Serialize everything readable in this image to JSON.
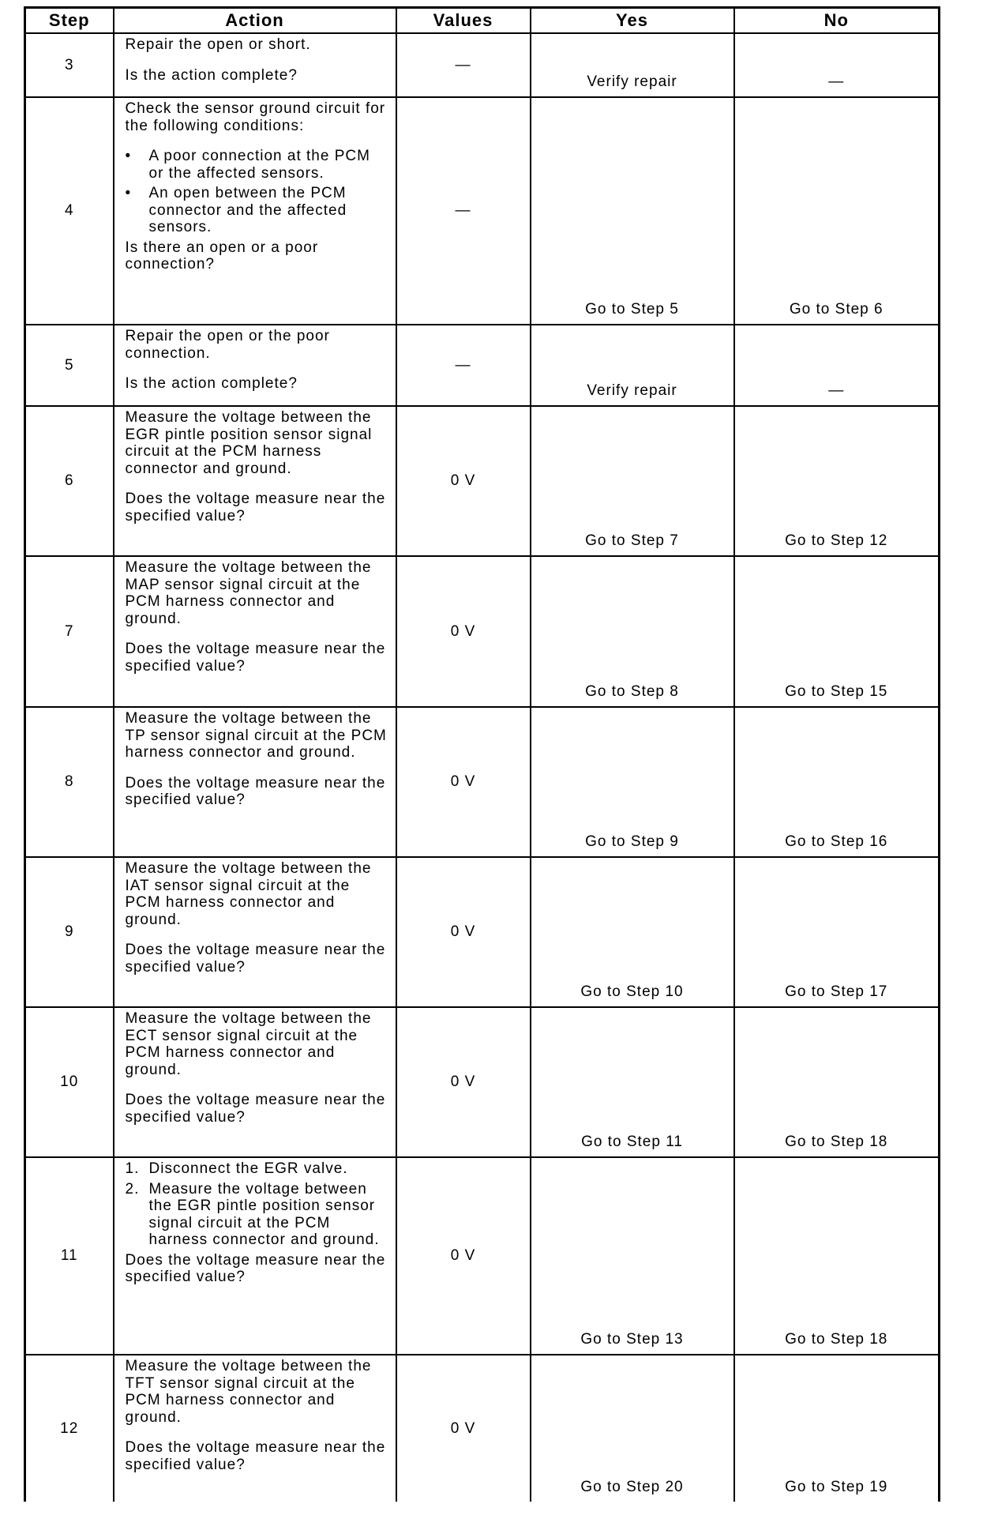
{
  "table": {
    "columns": [
      "Step",
      "Action",
      "Values",
      "Yes",
      "No"
    ],
    "rows": [
      {
        "step": "3",
        "action": [
          {
            "text": "Repair the open or short."
          },
          {
            "text": "Is the action complete?"
          }
        ],
        "values": "—",
        "yes": "Verify repair",
        "no": "—"
      },
      {
        "step": "4",
        "action": [
          {
            "text": "Check the sensor ground circuit for the following conditions:"
          },
          {
            "marker": "•",
            "text": "A poor connection at the PCM or the affected sensors."
          },
          {
            "marker": "•",
            "text": "An open between the PCM connector and the affected sensors."
          },
          {
            "text": "Is there an open or a poor connection?"
          }
        ],
        "values": "—",
        "yes": "Go to Step 5",
        "no": "Go to Step 6"
      },
      {
        "step": "5",
        "action": [
          {
            "text": "Repair the open or the poor connection."
          },
          {
            "text": "Is the action complete?"
          }
        ],
        "values": "—",
        "yes": "Verify repair",
        "no": "—"
      },
      {
        "step": "6",
        "action": [
          {
            "text": "Measure the voltage between the EGR pintle position sensor signal circuit at the PCM harness connector and ground."
          },
          {
            "text": "Does the voltage measure near the specified value?"
          }
        ],
        "values": "0 V",
        "yes": "Go to Step 7",
        "no": "Go to Step 12"
      },
      {
        "step": "7",
        "action": [
          {
            "text": "Measure the voltage between the MAP sensor signal circuit at the PCM harness connector and ground."
          },
          {
            "text": "Does the voltage measure near the specified value?"
          }
        ],
        "values": "0 V",
        "yes": "Go to Step 8",
        "no": "Go to Step 15"
      },
      {
        "step": "8",
        "action": [
          {
            "text": "Measure the voltage between the TP sensor signal circuit at the PCM harness connector and ground."
          },
          {
            "text": "Does the voltage measure near the specified value?"
          }
        ],
        "values": "0 V",
        "yes": "Go to Step 9",
        "no": "Go to Step 16"
      },
      {
        "step": "9",
        "action": [
          {
            "text": "Measure the voltage between the IAT sensor signal circuit at the PCM harness connector and ground."
          },
          {
            "text": "Does the voltage measure near the specified value?"
          }
        ],
        "values": "0 V",
        "yes": "Go to Step 10",
        "no": "Go to Step 17"
      },
      {
        "step": "10",
        "action": [
          {
            "text": "Measure the voltage between the ECT sensor signal circuit at the PCM harness connector and ground."
          },
          {
            "text": "Does the voltage measure near the specified value?"
          }
        ],
        "values": "0 V",
        "yes": "Go to Step 11",
        "no": "Go to Step 18"
      },
      {
        "step": "11",
        "action": [
          {
            "marker": "1.",
            "text": "Disconnect the EGR valve."
          },
          {
            "marker": "2.",
            "text": "Measure the voltage between the EGR pintle position sensor signal circuit at the PCM harness connector and ground."
          },
          {
            "text": "Does the voltage measure near the specified value?"
          }
        ],
        "values": "0 V",
        "yes": "Go to Step 13",
        "no": "Go to Step 18"
      },
      {
        "step": "12",
        "action": [
          {
            "text": "Measure the voltage between the TFT sensor signal circuit at the PCM harness connector and ground."
          },
          {
            "text": "Does the voltage measure near the specified value?"
          }
        ],
        "values": "0 V",
        "yes": "Go to Step 20",
        "no": "Go to Step 19"
      }
    ]
  }
}
